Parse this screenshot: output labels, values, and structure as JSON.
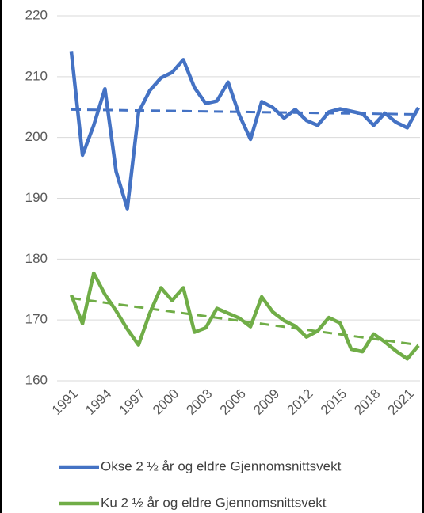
{
  "chart_data": {
    "type": "line",
    "x": [
      1991,
      1992,
      1993,
      1994,
      1995,
      1996,
      1997,
      1998,
      1999,
      2000,
      2001,
      2002,
      2003,
      2004,
      2005,
      2006,
      2007,
      2008,
      2009,
      2010,
      2011,
      2012,
      2013,
      2014,
      2015,
      2016,
      2017,
      2018,
      2019,
      2020,
      2021,
      2022
    ],
    "xlim": [
      1991,
      2022
    ],
    "xticks": [
      1991,
      1994,
      1997,
      2000,
      2003,
      2006,
      2009,
      2012,
      2015,
      2018,
      2021
    ],
    "ylim": [
      160,
      220
    ],
    "yticks": [
      160,
      170,
      180,
      190,
      200,
      210,
      220
    ],
    "grid": true,
    "legend": "bottom",
    "series": [
      {
        "name": "Okse 2 ½ år og eldre Gjennomsnittsvekt",
        "color": "#4472c4",
        "values": [
          214.1,
          197.1,
          202.0,
          208.0,
          194.4,
          188.3,
          204.1,
          207.7,
          209.8,
          210.7,
          212.8,
          208.2,
          205.6,
          206.0,
          209.1,
          203.7,
          199.7,
          205.9,
          204.9,
          203.2,
          204.6,
          202.8,
          202.0,
          204.2,
          204.7,
          204.3,
          203.9,
          202.0,
          204.0,
          202.5,
          201.6,
          204.9
        ],
        "trend": [
          204.6,
          203.8
        ]
      },
      {
        "name": "Ku 2 ½ år og eldre Gjennomsnittsvekt",
        "color": "#70ad47",
        "values": [
          174.1,
          169.4,
          177.7,
          174.2,
          171.5,
          168.5,
          165.9,
          171.1,
          175.3,
          173.2,
          175.3,
          168.0,
          168.7,
          171.9,
          171.1,
          170.3,
          168.9,
          173.8,
          171.3,
          169.9,
          169.0,
          167.2,
          168.2,
          170.4,
          169.5,
          165.2,
          164.8,
          167.7,
          166.4,
          164.9,
          163.6,
          165.8
        ],
        "trend": [
          173.6,
          165.9
        ]
      }
    ]
  }
}
